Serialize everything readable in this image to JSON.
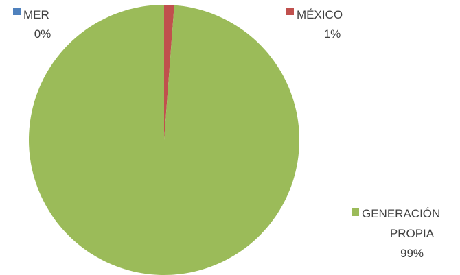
{
  "chart_data": {
    "type": "pie",
    "title": "",
    "legend": "none",
    "slices": [
      {
        "name": "MER",
        "name_lines": [
          "MER"
        ],
        "value": 0,
        "label": "0%",
        "color": "#4F81BD"
      },
      {
        "name": "MÉXICO",
        "name_lines": [
          "MÉXICO"
        ],
        "value": 1.2,
        "label": "1%",
        "color": "#C0504D"
      },
      {
        "name": "GENERACIÓN PROPIA",
        "name_lines": [
          "GENERACIÓN",
          "PROPIA"
        ],
        "value": 98.8,
        "label": "99%",
        "color": "#9BBB59"
      }
    ]
  }
}
